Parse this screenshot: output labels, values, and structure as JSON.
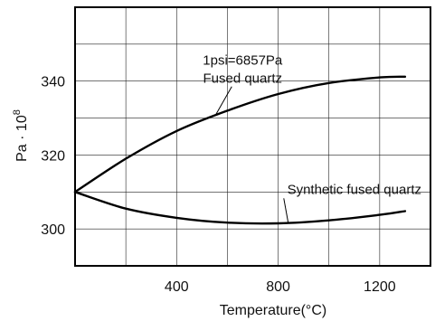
{
  "chart_data": {
    "type": "line",
    "title": "",
    "xlabel": "Temperature(°C)",
    "ylabel_main": "Pa · 10",
    "ylabel_exp": "8",
    "xlim": [
      0,
      1400
    ],
    "ylim": [
      290,
      360
    ],
    "x_ticks": [
      400,
      800,
      1200
    ],
    "y_ticks": [
      300,
      320,
      340
    ],
    "x_tick_labels": [
      "400",
      "800",
      "1200"
    ],
    "y_tick_labels": [
      "300",
      "320",
      "340"
    ],
    "x_grid": [
      200,
      400,
      600,
      800,
      1000,
      1200
    ],
    "y_grid": [
      300,
      310,
      320,
      330,
      340,
      350
    ],
    "grid": true,
    "series": [
      {
        "name": "Fused quartz",
        "x": [
          0,
          200,
          400,
          600,
          800,
          1000,
          1200,
          1300
        ],
        "y": [
          310,
          319,
          326.5,
          332,
          336.5,
          339.5,
          341,
          341.2
        ]
      },
      {
        "name": "Synthetic fused quartz",
        "x": [
          0,
          200,
          400,
          600,
          800,
          1000,
          1200,
          1300
        ],
        "y": [
          310,
          305.5,
          303,
          301.7,
          301.5,
          302.3,
          303.8,
          304.8
        ]
      }
    ],
    "annotations": [
      {
        "text": "1psi=6857Pa",
        "x": 660,
        "y": 345
      },
      {
        "text": "Fused quartz",
        "x": 660,
        "y": 340,
        "points_to": [
          555,
          331
        ]
      },
      {
        "text": "Synthetic fused quartz",
        "x": 1100,
        "y": 309.5,
        "points_to": [
          840,
          301.5
        ]
      }
    ]
  }
}
